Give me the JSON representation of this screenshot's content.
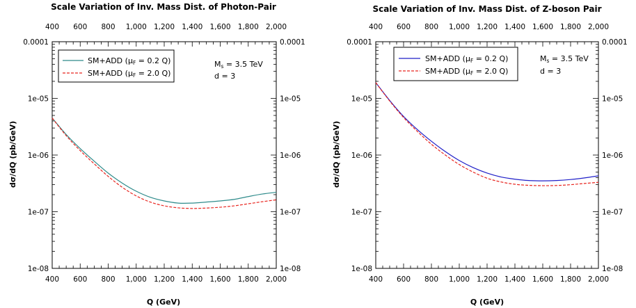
{
  "chart_data": [
    {
      "type": "line",
      "title": "Scale Variation of Inv. Mass Dist. of Photon-Pair",
      "xlabel": "Q (GeV)",
      "ylabel": "dσ/dQ (pb/GeV)",
      "xlim": [
        400,
        2000
      ],
      "ylim": [
        1e-08,
        0.0001
      ],
      "yscale": "log",
      "xticks": [
        "400",
        "600",
        "800",
        "1,000",
        "1,200",
        "1,400",
        "1,600",
        "1,800",
        "2,000"
      ],
      "yticks": [
        "0.0001",
        "1e-05",
        "1e-06",
        "1e-07",
        "1e-08"
      ],
      "grid": false,
      "legend_position": "top-left",
      "annotation": {
        "line1": "M",
        "line1_sub": "s",
        "line1_rest": " = 3.5 TeV",
        "line2": "d = 3"
      },
      "series": [
        {
          "name": "SM+ADD (μ",
          "name_sub": "F",
          "name_rest": " = 0.2 Q)",
          "color": "#2e8b8b",
          "dash": "solid",
          "x": [
            400,
            500,
            600,
            700,
            800,
            900,
            1000,
            1100,
            1200,
            1300,
            1400,
            1500,
            1600,
            1700,
            1800,
            1900,
            2000
          ],
          "y": [
            4.5e-06,
            2.3e-06,
            1.3e-06,
            7.8e-07,
            4.8e-07,
            3.2e-07,
            2.3e-07,
            1.8e-07,
            1.55e-07,
            1.42e-07,
            1.42e-07,
            1.48e-07,
            1.55e-07,
            1.65e-07,
            1.85e-07,
            2.05e-07,
            2.2e-07
          ]
        },
        {
          "name": "SM+ADD (μ",
          "name_sub": "F",
          "name_rest": " = 2.0 Q)",
          "color": "#e8251f",
          "dash": "dashed",
          "x": [
            400,
            500,
            600,
            700,
            800,
            900,
            1000,
            1100,
            1200,
            1300,
            1400,
            1500,
            1600,
            1700,
            1800,
            1900,
            2000
          ],
          "y": [
            4.5e-06,
            2.2e-06,
            1.2e-06,
            7e-07,
            4.2e-07,
            2.7e-07,
            1.9e-07,
            1.48e-07,
            1.27e-07,
            1.17e-07,
            1.14e-07,
            1.16e-07,
            1.2e-07,
            1.27e-07,
            1.38e-07,
            1.5e-07,
            1.62e-07
          ]
        }
      ]
    },
    {
      "type": "line",
      "title": "Scale Variation of Inv. Mass Dist. of Z-boson Pair",
      "xlabel": "Q (GeV)",
      "ylabel": "dσ/dQ (pb/GeV)",
      "xlim": [
        400,
        2000
      ],
      "ylim": [
        1e-08,
        0.0001
      ],
      "yscale": "log",
      "xticks": [
        "400",
        "600",
        "800",
        "1,000",
        "1,200",
        "1,400",
        "1,600",
        "1,800",
        "2,000"
      ],
      "yticks": [
        "0.0001",
        "1e-05",
        "1e-06",
        "1e-07",
        "1e-08"
      ],
      "grid": false,
      "legend_position": "top-left",
      "annotation": {
        "line1": "M",
        "line1_sub": "s",
        "line1_rest": " = 3.5 TeV",
        "line2": "d = 3"
      },
      "series": [
        {
          "name": "SM+ADD (μ",
          "name_sub": "F",
          "name_rest": " = 0.2 Q)",
          "color": "#1f1fc8",
          "dash": "solid",
          "x": [
            400,
            500,
            600,
            700,
            800,
            900,
            1000,
            1100,
            1200,
            1300,
            1400,
            1500,
            1600,
            1700,
            1800,
            1900,
            2000
          ],
          "y": [
            1.9e-05,
            9.2e-06,
            4.8e-06,
            2.8e-06,
            1.75e-06,
            1.15e-06,
            8e-07,
            6e-07,
            4.8e-07,
            4.1e-07,
            3.75e-07,
            3.55e-07,
            3.5e-07,
            3.55e-07,
            3.7e-07,
            3.95e-07,
            4.3e-07
          ]
        },
        {
          "name": "SM+ADD (μ",
          "name_sub": "F",
          "name_rest": " = 2.0 Q)",
          "color": "#e8251f",
          "dash": "dashed",
          "x": [
            400,
            500,
            600,
            700,
            800,
            900,
            1000,
            1100,
            1200,
            1300,
            1400,
            1500,
            1600,
            1700,
            1800,
            1900,
            2000
          ],
          "y": [
            1.9e-05,
            9e-06,
            4.6e-06,
            2.6e-06,
            1.55e-06,
            1e-06,
            6.8e-07,
            5e-07,
            3.9e-07,
            3.35e-07,
            3.05e-07,
            2.92e-07,
            2.88e-07,
            2.9e-07,
            3e-07,
            3.15e-07,
            3.3e-07
          ]
        }
      ]
    }
  ]
}
